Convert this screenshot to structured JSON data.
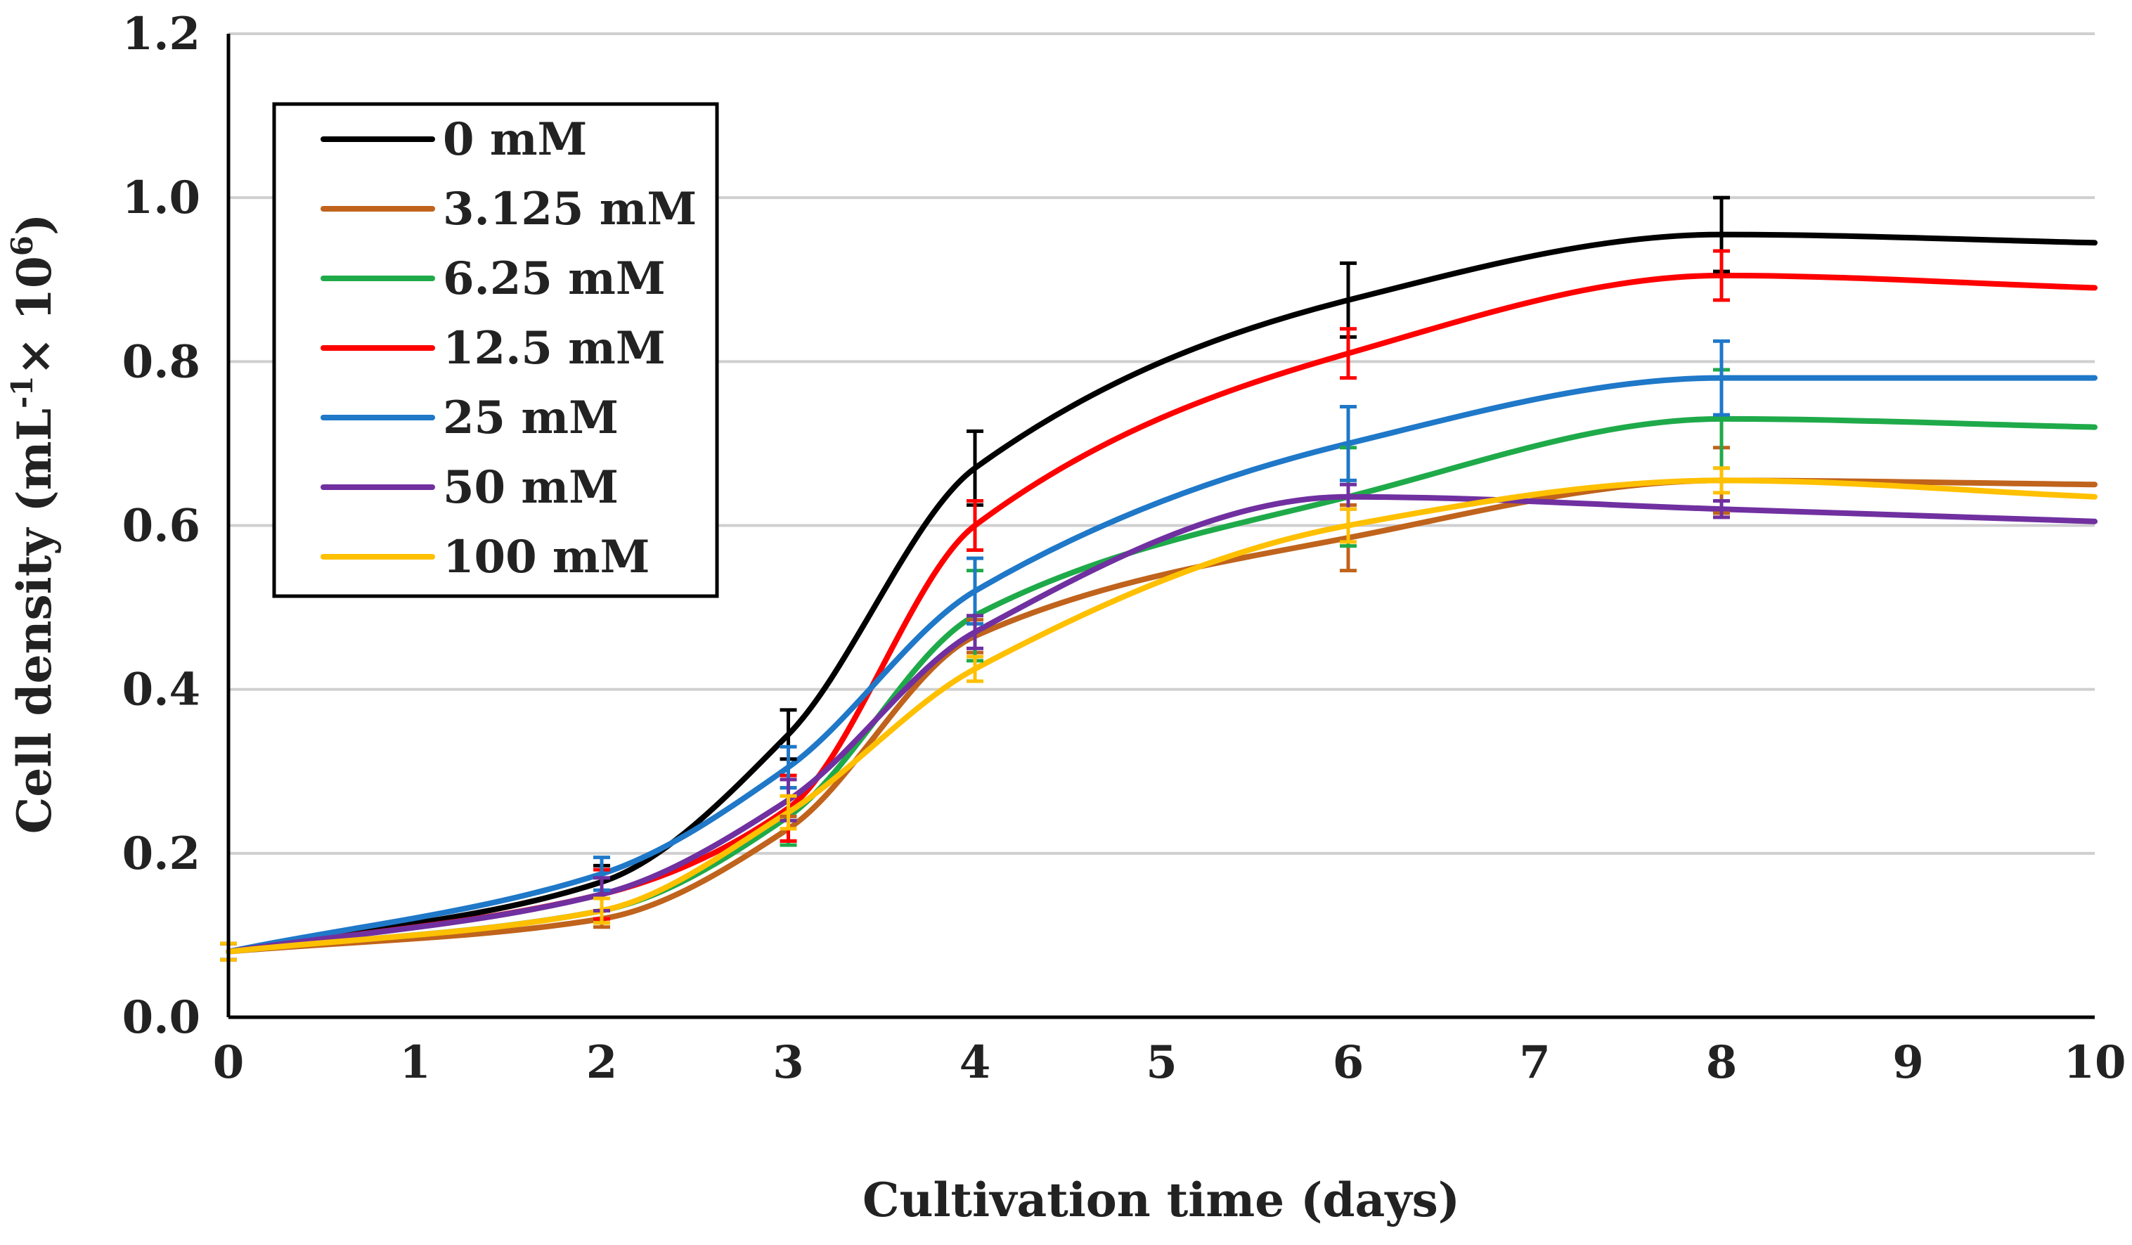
{
  "chart_data": {
    "type": "line",
    "title": "",
    "xlabel": "Cultivation time (days)",
    "ylabel_main": "Cell density (mL",
    "ylabel_sup1": "-1",
    "ylabel_mid": "× 10",
    "ylabel_sup2": "6",
    "ylabel_end": ")",
    "xlim": [
      0,
      10
    ],
    "ylim": [
      0,
      1.2
    ],
    "x_ticks": [
      "0",
      "1",
      "2",
      "3",
      "4",
      "5",
      "6",
      "7",
      "8",
      "9",
      "10"
    ],
    "y_ticks": [
      "0.0",
      "0.2",
      "0.4",
      "0.6",
      "0.8",
      "1.0",
      "1.2"
    ],
    "grid": true,
    "legend_position": "top-left",
    "series": [
      {
        "name": "0 mM",
        "color": "#000000",
        "x": [
          0,
          2,
          3,
          4,
          6,
          8,
          10
        ],
        "y": [
          0.08,
          0.165,
          0.345,
          0.67,
          0.875,
          0.955,
          0.945
        ],
        "err": [
          0.01,
          0.02,
          0.03,
          0.045,
          0.045,
          0.045,
          0
        ]
      },
      {
        "name": "3.125 mM",
        "color": "#c0631c",
        "x": [
          0,
          2,
          3,
          4,
          6,
          8,
          10
        ],
        "y": [
          0.08,
          0.12,
          0.23,
          0.465,
          0.585,
          0.655,
          0.65
        ],
        "err": [
          0.01,
          0.01,
          0.015,
          0.02,
          0.04,
          0.04,
          0
        ]
      },
      {
        "name": "6.25 mM",
        "color": "#1faa4a",
        "x": [
          0,
          2,
          3,
          4,
          6,
          8,
          10
        ],
        "y": [
          0.08,
          0.13,
          0.245,
          0.49,
          0.635,
          0.73,
          0.72
        ],
        "err": [
          0.01,
          0.015,
          0.035,
          0.055,
          0.06,
          0.06,
          0
        ]
      },
      {
        "name": "12.5 mM",
        "color": "#ff0000",
        "x": [
          0,
          2,
          3,
          4,
          6,
          8,
          10
        ],
        "y": [
          0.08,
          0.15,
          0.255,
          0.6,
          0.81,
          0.905,
          0.89
        ],
        "err": [
          0.01,
          0.03,
          0.04,
          0.03,
          0.03,
          0.03,
          0
        ]
      },
      {
        "name": "25 mM",
        "color": "#1f78c8",
        "x": [
          0,
          2,
          3,
          4,
          6,
          8,
          10
        ],
        "y": [
          0.08,
          0.175,
          0.305,
          0.52,
          0.7,
          0.78,
          0.78
        ],
        "err": [
          0.01,
          0.02,
          0.025,
          0.04,
          0.045,
          0.045,
          0
        ]
      },
      {
        "name": "50 mM",
        "color": "#7030a0",
        "x": [
          0,
          2,
          3,
          4,
          6,
          8,
          10
        ],
        "y": [
          0.08,
          0.15,
          0.265,
          0.47,
          0.635,
          0.62,
          0.605
        ],
        "err": [
          0.01,
          0.02,
          0.025,
          0.02,
          0.015,
          0.01,
          0
        ]
      },
      {
        "name": "100 mM",
        "color": "#ffc000",
        "x": [
          0,
          2,
          3,
          4,
          6,
          8,
          10
        ],
        "y": [
          0.08,
          0.13,
          0.25,
          0.425,
          0.6,
          0.655,
          0.635
        ],
        "err": [
          0.01,
          0.015,
          0.02,
          0.015,
          0.02,
          0.015,
          0
        ]
      }
    ]
  }
}
